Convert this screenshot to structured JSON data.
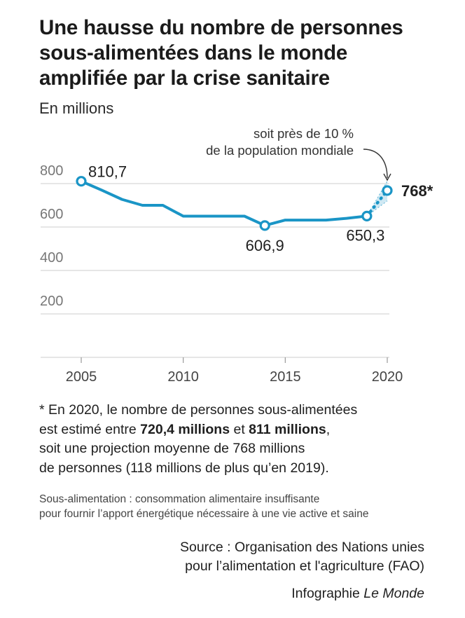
{
  "title_lines": [
    "Une hausse du nombre de personnes",
    "sous-alimentées dans le monde",
    "amplifiée par la crise sanitaire"
  ],
  "subtitle": "En millions",
  "chart_data": {
    "type": "line",
    "title": "Une hausse du nombre de personnes sous-alimentées dans le monde amplifiée par la crise sanitaire",
    "ylabel": "En millions",
    "xlabel": "",
    "xlim": [
      2003,
      2021
    ],
    "ylim": [
      0,
      800
    ],
    "x_ticks": [
      "2005",
      "2010",
      "2015",
      "2020"
    ],
    "y_ticks": [
      "800",
      "600",
      "400",
      "200"
    ],
    "grid": true,
    "series": [
      {
        "x": [
          2005,
          2006,
          2007,
          2008,
          2009,
          2010,
          2011,
          2012,
          2013,
          2014,
          2015,
          2016,
          2017,
          2018,
          2019
        ],
        "values": [
          810.7,
          770,
          727,
          700,
          700,
          650,
          650,
          650,
          650,
          606.9,
          632,
          632,
          632,
          640,
          650.3
        ]
      },
      {
        "x": [
          2019,
          2020
        ],
        "values": [
          650.3,
          768
        ],
        "style": "dotted"
      }
    ],
    "range_2020": [
      720.4,
      811
    ],
    "labels": {
      "v2005": "810,7",
      "v2014": "606,9",
      "v2019": "650,3",
      "v2020": "768*"
    },
    "annotation": [
      "soit près de 10 %",
      "de la population mondiale"
    ],
    "colors": {
      "line": "#1a95c6",
      "range": "#a7d5ea",
      "grid": "#d7d7d7",
      "text": "#1f1f1f"
    }
  },
  "footnote": {
    "line1": "* En 2020, le nombre de personnes sous-alimentées",
    "line2_a": "est estimé entre ",
    "line2_b": "720,4 millions",
    "line2_c": " et ",
    "line2_d": "811 millions",
    "line2_e": ",",
    "line3": "soit une projection moyenne de 768 millions",
    "line4": "de personnes (118 millions de plus qu’en 2019)."
  },
  "definition": [
    "Sous-alimentation : consommation alimentaire insuffisante",
    "pour fournir l’apport énergétique nécessaire à une vie active et saine"
  ],
  "source": [
    "Source : Organisation des Nations unies",
    "pour l’alimentation et l'agriculture (FAO)"
  ],
  "credit": {
    "prefix": "Infographie ",
    "brand": "Le Monde"
  }
}
